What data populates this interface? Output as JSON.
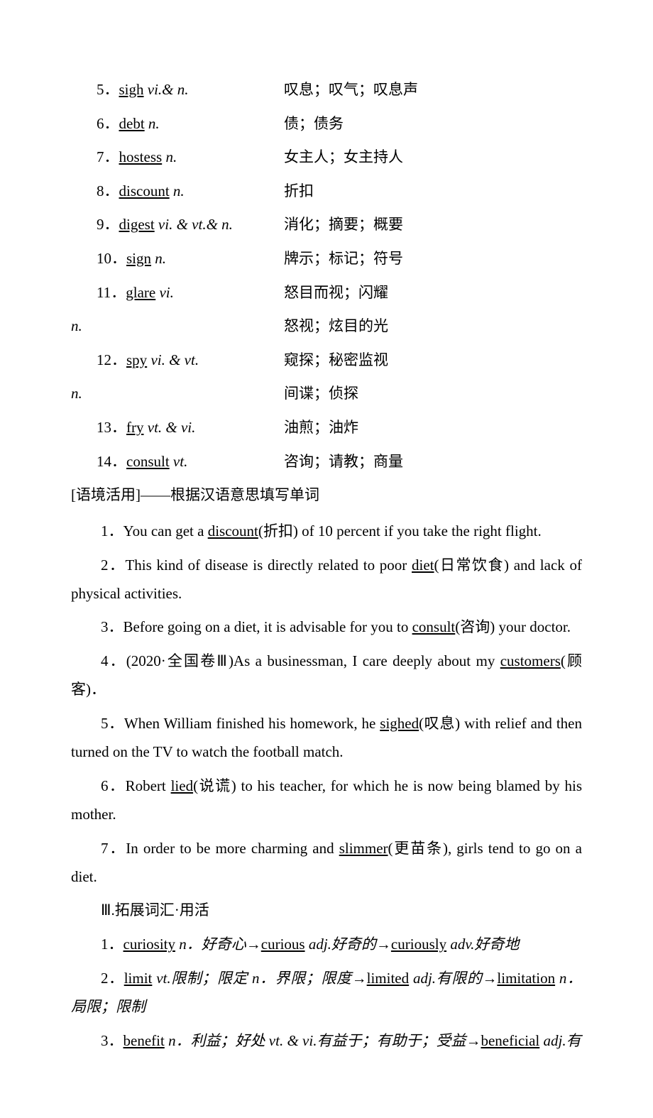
{
  "vocab": [
    {
      "num": "5",
      "word": "sigh",
      "pos": "vi.& n.",
      "def": "叹息；叹气；叹息声"
    },
    {
      "num": "6",
      "word": "debt",
      "pos": "n.",
      "def": "债；债务"
    },
    {
      "num": "7",
      "word": "hostess",
      "pos": "n.",
      "def": "女主人；女主持人"
    },
    {
      "num": "8",
      "word": "discount",
      "pos": "n.",
      "def": "折扣"
    },
    {
      "num": "9",
      "word": "digest",
      "pos": "vi. & vt.& n.",
      "def": "消化；摘要；概要"
    },
    {
      "num": "10",
      "word": "sign",
      "pos": "n.",
      "def": "牌示；标记；符号"
    },
    {
      "num": "11",
      "word": "glare",
      "pos": "vi.",
      "def": "怒目而视；闪耀"
    }
  ],
  "glare_n": {
    "left": "n.",
    "def": "怒视；炫目的光"
  },
  "vocab2": [
    {
      "num": "12",
      "word": "spy",
      "pos": "vi. & vt.",
      "def": "窥探；秘密监视"
    }
  ],
  "spy_n": {
    "left": "n.",
    "def": "间谍；侦探"
  },
  "vocab3": [
    {
      "num": "13",
      "word": "fry",
      "pos": "vt. & vi.",
      "def": "油煎；油炸"
    },
    {
      "num": "14",
      "word": "consult",
      "pos": "vt.",
      "def": "咨询；请教；商量"
    }
  ],
  "context_header": "[语境活用]——根据汉语意思填写单词",
  "sentences": {
    "s1a": "1．You can get a ",
    "s1u": "discount",
    "s1b": "(折扣) of 10 percent if you take the right flight.",
    "s2a": "2．This kind of disease is directly related to poor ",
    "s2u": "diet",
    "s2b": "(日常饮食) and lack of physical activities.",
    "s3a": "3．Before going on a diet, it is advisable for you to ",
    "s3u": "consult",
    "s3b": "(咨询) your doctor.",
    "s4a": "4．(2020·全国卷Ⅲ)As a businessman, I care deeply about my ",
    "s4u": "customers",
    "s4b": "(顾客)．",
    "s5a": "5．When William finished his homework, he ",
    "s5u": "sighed",
    "s5b": "(叹息) with relief and then turned on the TV to watch the football match.",
    "s6a": "6．Robert ",
    "s6u": "lied",
    "s6b": "(说谎) to his teacher, for which he is now being blamed by his mother.",
    "s7a": "7．In order to be more charming and ",
    "s7u": "slimmer",
    "s7b": "(更苗条), girls tend to go on a diet."
  },
  "section3": "Ⅲ.拓展词汇·用活",
  "deriv": {
    "d1": {
      "num": "1．",
      "w1": "curiosity",
      "p1": " n．好奇心→",
      "w2": "curious",
      "p2": " adj.好奇的→",
      "w3": "curiously",
      "p3": " adv.好奇地"
    },
    "d2": {
      "num": "2．",
      "w1": "limit",
      "p1": " vt.限制；限定 n．界限；限度→",
      "w2": "limited",
      "p2": " adj.有限的→",
      "w3": "limitation",
      "p3": " n．局限；限制"
    },
    "d3": {
      "num": "3．",
      "w1": "benefit",
      "p1": " n．利益；好处 vt. & vi.有益于；有助于；受益→",
      "w2": "beneficial",
      "p2": " adj.有"
    }
  }
}
